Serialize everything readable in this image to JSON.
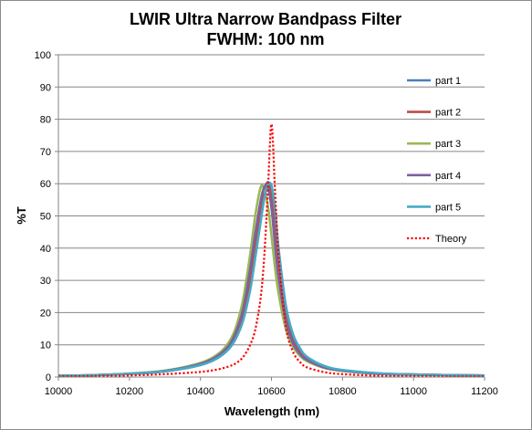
{
  "chart_data": {
    "type": "line",
    "title": "LWIR Ultra Narrow Bandpass Filter",
    "subtitle": "FWHM: 100 nm",
    "xlabel": "Wavelength (nm)",
    "ylabel": "%T",
    "xlim": [
      10000,
      11200
    ],
    "ylim": [
      0,
      100
    ],
    "x_ticks": [
      "10000",
      "10200",
      "10400",
      "10600",
      "10800",
      "11000",
      "11200"
    ],
    "y_ticks": [
      "0",
      "10",
      "20",
      "30",
      "40",
      "50",
      "60",
      "70",
      "80",
      "90",
      "100"
    ],
    "grid": "horizontal",
    "legend_position": "right",
    "x": [
      10000,
      10100,
      10200,
      10300,
      10400,
      10450,
      10480,
      10500,
      10520,
      10540,
      10555,
      10570,
      10580,
      10590,
      10600,
      10610,
      10620,
      10640,
      10660,
      10680,
      10700,
      10750,
      10800,
      10900,
      11000,
      11100,
      11200
    ],
    "series": [
      {
        "name": "part 1",
        "color": "#4a7ebb",
        "style": "solid",
        "values": [
          0.4,
          0.6,
          1.0,
          1.8,
          3.8,
          6.2,
          9.0,
          12.5,
          18.5,
          29.0,
          40.0,
          51.0,
          57.5,
          60.5,
          57.0,
          47.0,
          36.0,
          20.0,
          12.0,
          8.0,
          5.8,
          3.2,
          2.1,
          1.1,
          0.8,
          0.6,
          0.5
        ]
      },
      {
        "name": "part 2",
        "color": "#be4b48",
        "style": "solid",
        "values": [
          0.4,
          0.6,
          1.0,
          1.8,
          3.9,
          6.4,
          9.3,
          13.0,
          19.5,
          31.0,
          42.5,
          53.0,
          58.5,
          60.0,
          55.0,
          44.0,
          33.0,
          18.5,
          11.2,
          7.6,
          5.5,
          3.0,
          2.0,
          1.1,
          0.8,
          0.6,
          0.5
        ]
      },
      {
        "name": "part 3",
        "color": "#98b954",
        "style": "solid",
        "values": [
          0.4,
          0.6,
          1.1,
          2.0,
          4.4,
          7.2,
          10.8,
          15.5,
          24.0,
          38.0,
          50.5,
          59.0,
          58.0,
          53.0,
          44.0,
          34.0,
          26.0,
          15.0,
          9.5,
          6.6,
          4.9,
          2.8,
          1.9,
          1.0,
          0.7,
          0.6,
          0.5
        ]
      },
      {
        "name": "part 4",
        "color": "#7d60a0",
        "style": "solid",
        "values": [
          0.4,
          0.6,
          1.0,
          1.9,
          4.1,
          6.7,
          9.8,
          14.0,
          21.0,
          33.5,
          45.0,
          55.0,
          59.0,
          59.0,
          52.5,
          41.0,
          31.0,
          17.5,
          10.6,
          7.2,
          5.3,
          2.9,
          2.0,
          1.0,
          0.8,
          0.6,
          0.5
        ]
      },
      {
        "name": "part 5",
        "color": "#46aac5",
        "style": "solid",
        "values": [
          0.4,
          0.6,
          1.0,
          1.8,
          3.7,
          6.0,
          8.7,
          12.0,
          17.5,
          27.0,
          37.5,
          48.5,
          55.5,
          59.5,
          59.5,
          52.0,
          40.0,
          22.5,
          13.5,
          9.0,
          6.3,
          3.4,
          2.2,
          1.2,
          0.8,
          0.6,
          0.5
        ]
      },
      {
        "name": "Theory",
        "color": "#ff0000",
        "style": "dotted",
        "values": [
          0.2,
          0.3,
          0.5,
          0.9,
          1.6,
          2.4,
          3.3,
          4.3,
          6.2,
          10.0,
          15.0,
          25.0,
          38.0,
          58.0,
          78.5,
          58.0,
          38.0,
          16.0,
          8.0,
          4.7,
          3.0,
          1.5,
          0.9,
          0.4,
          0.3,
          0.2,
          0.2
        ]
      }
    ]
  }
}
